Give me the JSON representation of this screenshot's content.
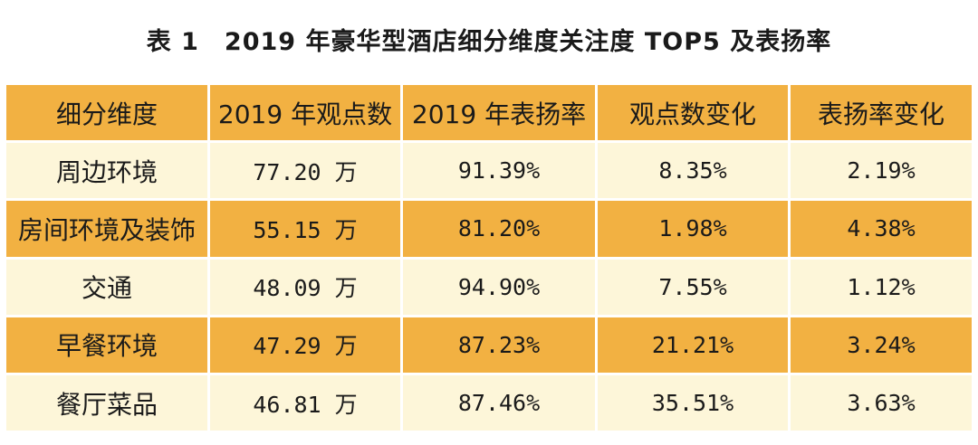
{
  "title": "表 1　2019 年豪华型酒店细分维度关注度 TOP5 及表扬率",
  "table": {
    "headers": [
      "细分维度",
      "2019 年观点数",
      "2019 年表扬率",
      "观点数变化",
      "表扬率变化"
    ],
    "rows": [
      [
        "周边环境",
        "77.20 万",
        "91.39%",
        "8.35%",
        "2.19%"
      ],
      [
        "房间环境及装饰",
        "55.15 万",
        "81.20%",
        "1.98%",
        "4.38%"
      ],
      [
        "交通",
        "48.09 万",
        "94.90%",
        "7.55%",
        "1.12%"
      ],
      [
        "早餐环境",
        "47.29 万",
        "87.23%",
        "21.21%",
        "3.24%"
      ],
      [
        "餐厅菜品",
        "46.81 万",
        "87.46%",
        "35.51%",
        "3.63%"
      ]
    ]
  },
  "colors": {
    "accent_row": "#f2b142",
    "light_row": "#fdf6d9"
  }
}
